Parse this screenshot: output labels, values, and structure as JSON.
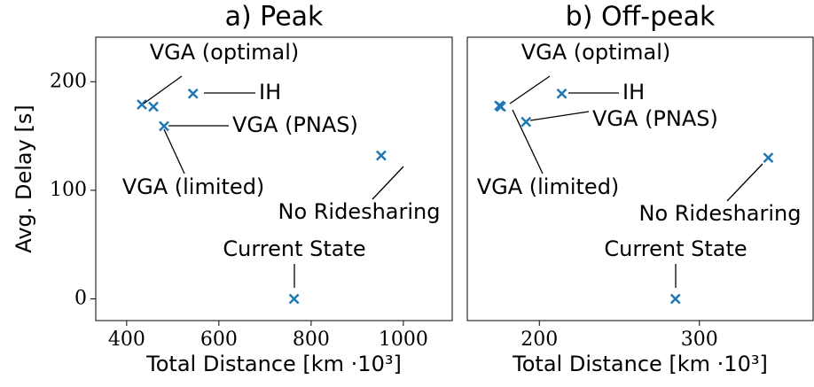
{
  "chart_data": [
    {
      "type": "scatter",
      "title": "a) Peak",
      "xlabel": "Total Distance [km ·10³]",
      "ylabel": "Avg. Delay [s]",
      "series": [
        {
          "color": "#1f77b4",
          "labels": [
            "VGA (optimal)",
            "VGA (limited)",
            "VGA (PNAS)",
            "IH",
            "No Ridesharing",
            "Current State"
          ],
          "x": [
            433,
            458,
            481,
            544,
            952,
            763
          ],
          "values": [
            179,
            177,
            159,
            189,
            132,
            0
          ]
        }
      ],
      "xlim": [
        333,
        1106
      ],
      "xticks": [
        400,
        600,
        800,
        1000
      ],
      "ylim": [
        -20,
        241
      ],
      "yticks": [
        0,
        100,
        200
      ]
    },
    {
      "type": "scatter",
      "title": "b) Off-peak",
      "xlabel": "Total Distance [km ·10³]",
      "series": [
        {
          "color": "#1f77b4",
          "labels": [
            "VGA (optimal)",
            "VGA (limited)",
            "VGA (PNAS)",
            "IH",
            "No Ridesharing",
            "Current State"
          ],
          "x": [
            175,
            176,
            191.7,
            214,
            343,
            285
          ],
          "values": [
            178,
            177,
            163,
            189,
            130,
            0
          ]
        }
      ],
      "xlim": [
        155,
        371
      ],
      "xticks": [
        200,
        300
      ],
      "ylim": [
        -20,
        241
      ]
    }
  ]
}
